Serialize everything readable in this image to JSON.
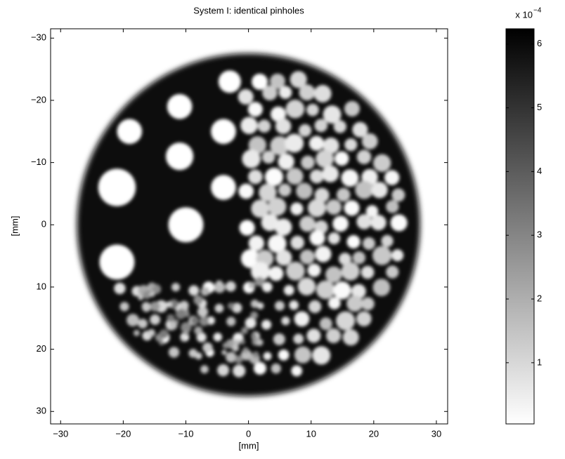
{
  "chart_data": {
    "type": "image",
    "title": "System I: identical pinholes",
    "xlabel": "[mm]",
    "ylabel": "[mm]",
    "xlim": [
      -31.6,
      31.8
    ],
    "ylim": [
      -31.5,
      32
    ],
    "y_reversed": true,
    "xticks": [
      {
        "value": -30,
        "label": "−30"
      },
      {
        "value": -20,
        "label": "−20"
      },
      {
        "value": -10,
        "label": "−10"
      },
      0,
      10,
      20,
      30
    ],
    "yticks": [
      {
        "value": -30,
        "label": "−30"
      },
      {
        "value": -20,
        "label": "−20"
      },
      {
        "value": -10,
        "label": "−10"
      },
      0,
      10,
      20,
      30
    ],
    "colormap": "gray-reversed",
    "colorbar": {
      "multiplier": "x 10",
      "exponent": "−4",
      "clim": [
        0.04,
        6.24
      ],
      "ticks": [
        1,
        2,
        3,
        4,
        5,
        6
      ]
    }
  }
}
